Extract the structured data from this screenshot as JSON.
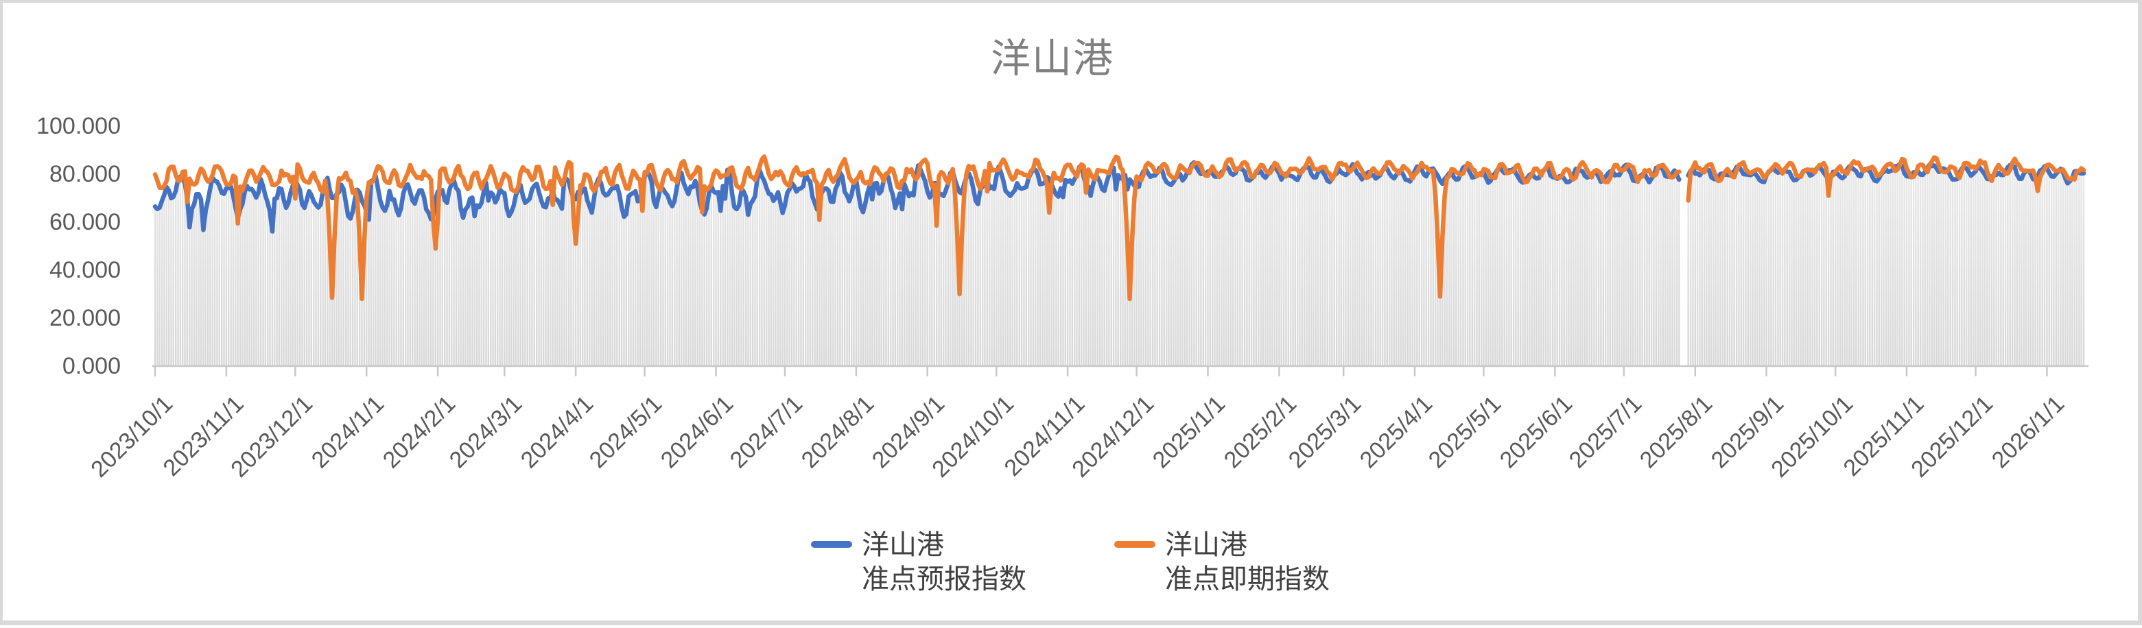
{
  "frame": {
    "background": "#ffffff",
    "border_color": "#d9d9d9"
  },
  "text_colors": {
    "title": "#808080",
    "axis": "#595959",
    "legend": "#404040"
  },
  "axis_line_color": "#c8c8c8",
  "chart_data": {
    "type": "line",
    "title": "洋山港",
    "legend_position": "bottom",
    "series": [
      {
        "name": "洋山港准点预报指数",
        "legend_line1": "洋山港",
        "legend_line2": "准点预报指数",
        "color": "#4472C4"
      },
      {
        "name": "洋山港准点即期指数",
        "legend_line1": "洋山港",
        "legend_line2": "准点即期指数",
        "color": "#ED7D31"
      }
    ],
    "x_axis": {
      "start": "2023/10/1",
      "end": "2026/1/17",
      "granularity": "daily",
      "tick_labels": [
        "2023/10/1",
        "2023/11/1",
        "2023/12/1",
        "2024/1/1",
        "2024/2/1",
        "2024/3/1",
        "2024/4/1",
        "2024/5/1",
        "2024/6/1",
        "2024/7/1",
        "2024/8/1",
        "2024/9/1",
        "2024/10/1",
        "2024/11/1",
        "2024/12/1",
        "2025/1/1",
        "2025/2/1",
        "2025/3/1",
        "2025/4/1",
        "2025/5/1",
        "2025/6/1",
        "2025/7/1",
        "2025/8/1",
        "2025/9/1",
        "2025/10/1",
        "2025/11/1",
        "2025/12/1",
        "2026/1/1"
      ]
    },
    "y_axis": {
      "min": 0,
      "max": 100,
      "tick_labels": [
        "100.000",
        "80.000",
        "60.000",
        "40.000",
        "20.000",
        "0.000"
      ]
    },
    "grid": {
      "horizontal": false,
      "vertical_daily_bars": true
    },
    "background_bars": {
      "color_top": "#ebebeb",
      "color_bottom": "#d6d6d6",
      "rule": "gray daily column behind lines, height = lower of the two series values"
    },
    "anomalies": {
      "deep_dips_spot_series": [
        {
          "date": "2023/12/17",
          "value": 28.5
        },
        {
          "date": "2023/12/30",
          "value": 28.0
        },
        {
          "date": "2024/9/15",
          "value": 30.0
        },
        {
          "date": "2024/11/28",
          "value": 28.0
        },
        {
          "date": "2025/4/12",
          "value": 29.0
        }
      ],
      "medium_dips_spot_series": [
        {
          "date": "2024/1/31",
          "value": 49
        },
        {
          "date": "2024/4/1",
          "value": 51
        },
        {
          "date": "2024/10/24",
          "value": 64
        },
        {
          "date": "2025/7/29",
          "value": 69
        },
        {
          "date": "2025/9/28",
          "value": 71
        },
        {
          "date": "2025/12/28",
          "value": 73
        }
      ],
      "data_gap": {
        "start": "2025/7/26",
        "end": "2025/7/28"
      }
    },
    "synthesis": {
      "seed": 11,
      "points": "daily",
      "forecast_series": {
        "base_anchors": [
          [
            0,
            71.5
          ],
          [
            150,
            71
          ],
          [
            300,
            73
          ],
          [
            400,
            77
          ],
          [
            460,
            80.5
          ],
          [
            620,
            79.5
          ],
          [
            760,
            81
          ],
          [
            839,
            80
          ]
        ],
        "amp_anchors": [
          [
            0,
            8
          ],
          [
            320,
            7.5
          ],
          [
            430,
            4.5
          ],
          [
            470,
            3.2
          ],
          [
            839,
            3.2
          ]
        ],
        "phases": [
          3.6,
          4.2
        ]
      },
      "spot_series": {
        "base_anchors": [
          [
            0,
            79
          ],
          [
            150,
            78.5
          ],
          [
            300,
            79.5
          ],
          [
            430,
            82
          ],
          [
            520,
            82
          ],
          [
            620,
            80.5
          ],
          [
            780,
            83
          ],
          [
            839,
            80.5
          ]
        ],
        "amp_anchors": [
          [
            0,
            5.5
          ],
          [
            320,
            5.5
          ],
          [
            430,
            4.0
          ],
          [
            470,
            3.4
          ],
          [
            839,
            3.6
          ]
        ],
        "phases": [
          2.1,
          4.0
        ]
      },
      "early_noise_until_day": 430
    }
  }
}
